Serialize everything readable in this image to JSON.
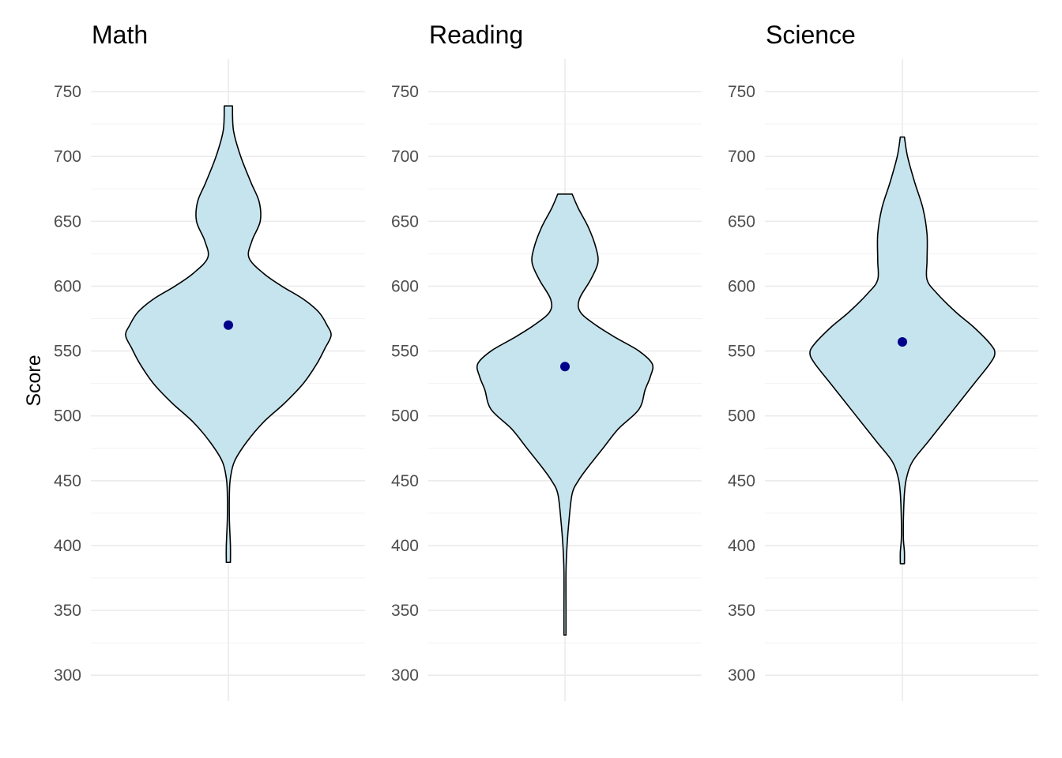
{
  "chart_data": {
    "type": "violin",
    "ylabel": "Score",
    "ylim": [
      280,
      775
    ],
    "y_ticks": [
      300,
      350,
      400,
      450,
      500,
      550,
      600,
      650,
      700,
      750
    ],
    "y_tick_labels": [
      "300",
      "350",
      "400",
      "450",
      "500",
      "550",
      "600",
      "650",
      "700",
      "750"
    ],
    "grid": true,
    "colors": {
      "fill": "#c6e4ee",
      "outline": "#000000",
      "mean_point": "#00008b"
    },
    "panels": [
      {
        "title": "Math",
        "mean": 570,
        "min": 387,
        "max": 739,
        "density": [
          [
            739,
            0.04
          ],
          [
            720,
            0.05
          ],
          [
            700,
            0.12
          ],
          [
            680,
            0.22
          ],
          [
            665,
            0.3
          ],
          [
            650,
            0.31
          ],
          [
            635,
            0.23
          ],
          [
            622,
            0.2
          ],
          [
            610,
            0.34
          ],
          [
            600,
            0.52
          ],
          [
            590,
            0.73
          ],
          [
            580,
            0.88
          ],
          [
            570,
            0.96
          ],
          [
            562,
            1.0
          ],
          [
            552,
            0.94
          ],
          [
            540,
            0.86
          ],
          [
            525,
            0.73
          ],
          [
            510,
            0.55
          ],
          [
            495,
            0.34
          ],
          [
            480,
            0.18
          ],
          [
            465,
            0.06
          ],
          [
            452,
            0.02
          ],
          [
            440,
            0.01
          ],
          [
            420,
            0.01
          ],
          [
            400,
            0.02
          ],
          [
            387,
            0.02
          ]
        ]
      },
      {
        "title": "Reading",
        "mean": 538,
        "min": 331,
        "max": 671,
        "density": [
          [
            671,
            0.07
          ],
          [
            660,
            0.13
          ],
          [
            645,
            0.23
          ],
          [
            630,
            0.3
          ],
          [
            618,
            0.32
          ],
          [
            605,
            0.25
          ],
          [
            590,
            0.14
          ],
          [
            580,
            0.15
          ],
          [
            570,
            0.3
          ],
          [
            560,
            0.5
          ],
          [
            550,
            0.72
          ],
          [
            540,
            0.85
          ],
          [
            530,
            0.83
          ],
          [
            520,
            0.78
          ],
          [
            505,
            0.72
          ],
          [
            490,
            0.52
          ],
          [
            475,
            0.37
          ],
          [
            460,
            0.22
          ],
          [
            450,
            0.13
          ],
          [
            440,
            0.07
          ],
          [
            420,
            0.04
          ],
          [
            400,
            0.02
          ],
          [
            380,
            0.01
          ],
          [
            350,
            0.01
          ],
          [
            331,
            0.01
          ]
        ]
      },
      {
        "title": "Science",
        "mean": 557,
        "min": 386,
        "max": 715,
        "density": [
          [
            715,
            0.02
          ],
          [
            700,
            0.05
          ],
          [
            680,
            0.12
          ],
          [
            660,
            0.2
          ],
          [
            640,
            0.24
          ],
          [
            620,
            0.24
          ],
          [
            605,
            0.24
          ],
          [
            595,
            0.33
          ],
          [
            580,
            0.52
          ],
          [
            568,
            0.7
          ],
          [
            555,
            0.86
          ],
          [
            548,
            0.9
          ],
          [
            540,
            0.85
          ],
          [
            525,
            0.7
          ],
          [
            510,
            0.55
          ],
          [
            495,
            0.4
          ],
          [
            480,
            0.25
          ],
          [
            465,
            0.1
          ],
          [
            452,
            0.04
          ],
          [
            440,
            0.02
          ],
          [
            420,
            0.01
          ],
          [
            405,
            0.01
          ],
          [
            395,
            0.02
          ],
          [
            386,
            0.02
          ]
        ]
      }
    ]
  }
}
